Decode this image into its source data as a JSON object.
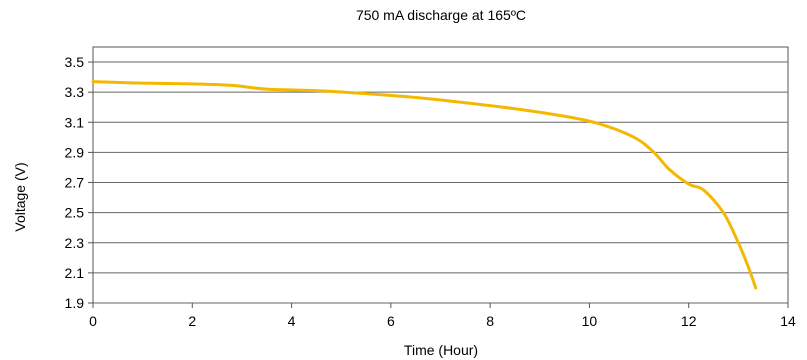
{
  "chart_data": {
    "type": "line",
    "title": "750 mA discharge at 165ºC",
    "xlabel": "Time (Hour)",
    "ylabel": "Voltage (V)",
    "xlim": [
      0,
      14
    ],
    "ylim": [
      1.9,
      3.6
    ],
    "xticks": [
      0,
      2,
      4,
      6,
      8,
      10,
      12,
      14
    ],
    "yticks": [
      1.9,
      2.1,
      2.3,
      2.5,
      2.7,
      2.9,
      3.1,
      3.3,
      3.5
    ],
    "grid": "horizontal",
    "legend": "none",
    "line_color": "#f5b800",
    "series": [
      {
        "x": [
          0,
          1,
          2,
          2.8,
          3.5,
          4.5,
          5.5,
          6.5,
          7.5,
          8.5,
          9.5,
          10.2,
          10.9,
          11.3,
          11.6,
          12.0,
          12.3,
          12.7,
          13.0,
          13.2,
          13.35
        ],
        "y": [
          3.37,
          3.36,
          3.355,
          3.345,
          3.32,
          3.31,
          3.29,
          3.265,
          3.23,
          3.19,
          3.14,
          3.09,
          3.0,
          2.9,
          2.79,
          2.69,
          2.65,
          2.5,
          2.3,
          2.14,
          2.0
        ]
      }
    ]
  }
}
